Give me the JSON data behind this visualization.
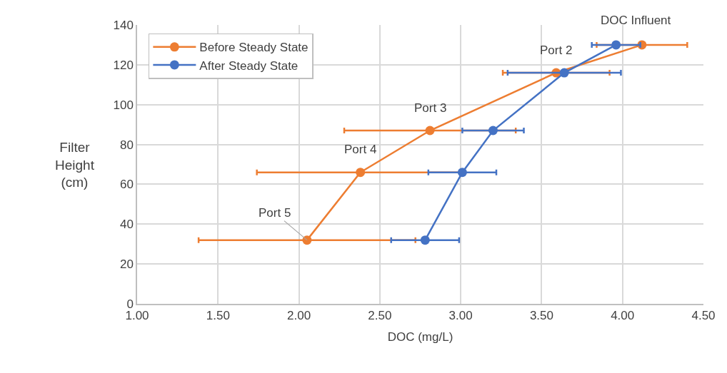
{
  "chart_data": {
    "type": "line",
    "xlabel": "DOC (mg/L)",
    "ylabel": "Filter Height (cm)",
    "xlim": [
      1.0,
      4.5
    ],
    "xticks": [
      {
        "value": 1.0,
        "label": "1.00"
      },
      {
        "value": 1.5,
        "label": "1.50"
      },
      {
        "value": 2.0,
        "label": "2.00"
      },
      {
        "value": 2.5,
        "label": "2.50"
      },
      {
        "value": 3.0,
        "label": "3.00"
      },
      {
        "value": 3.5,
        "label": "3.50"
      },
      {
        "value": 4.0,
        "label": "4.00"
      },
      {
        "value": 4.5,
        "label": "4.50"
      }
    ],
    "ylim": [
      0,
      140
    ],
    "yticks": [
      0,
      20,
      40,
      60,
      80,
      100,
      120,
      140
    ],
    "grid": true,
    "legend": "top left",
    "marker": "circle",
    "line_style": "solid",
    "series": [
      {
        "name": "Before Steady State",
        "color": "#ed7d31",
        "x": [
          4.12,
          3.59,
          2.81,
          2.38,
          2.05
        ],
        "values": [
          130,
          116,
          87,
          66,
          32
        ],
        "xerrors": [
          0.28,
          0.33,
          0.53,
          0.64,
          0.67
        ]
      },
      {
        "name": "After Steady State",
        "color": "#4472c4",
        "x": [
          3.96,
          3.64,
          3.2,
          3.01,
          2.78
        ],
        "values": [
          130,
          116,
          87,
          66,
          32
        ],
        "xerrors": [
          0.15,
          0.35,
          0.19,
          0.21,
          0.21
        ]
      }
    ],
    "annotations": [
      {
        "text": "DOC Influent",
        "x": 4.12,
        "y": 130
      },
      {
        "text": "Port 2",
        "x": 3.59,
        "y": 116
      },
      {
        "text": "Port 3",
        "x": 2.81,
        "y": 87
      },
      {
        "text": "Port 4",
        "x": 2.38,
        "y": 66
      },
      {
        "text": "Port 5",
        "x": 2.05,
        "y": 32
      }
    ]
  }
}
